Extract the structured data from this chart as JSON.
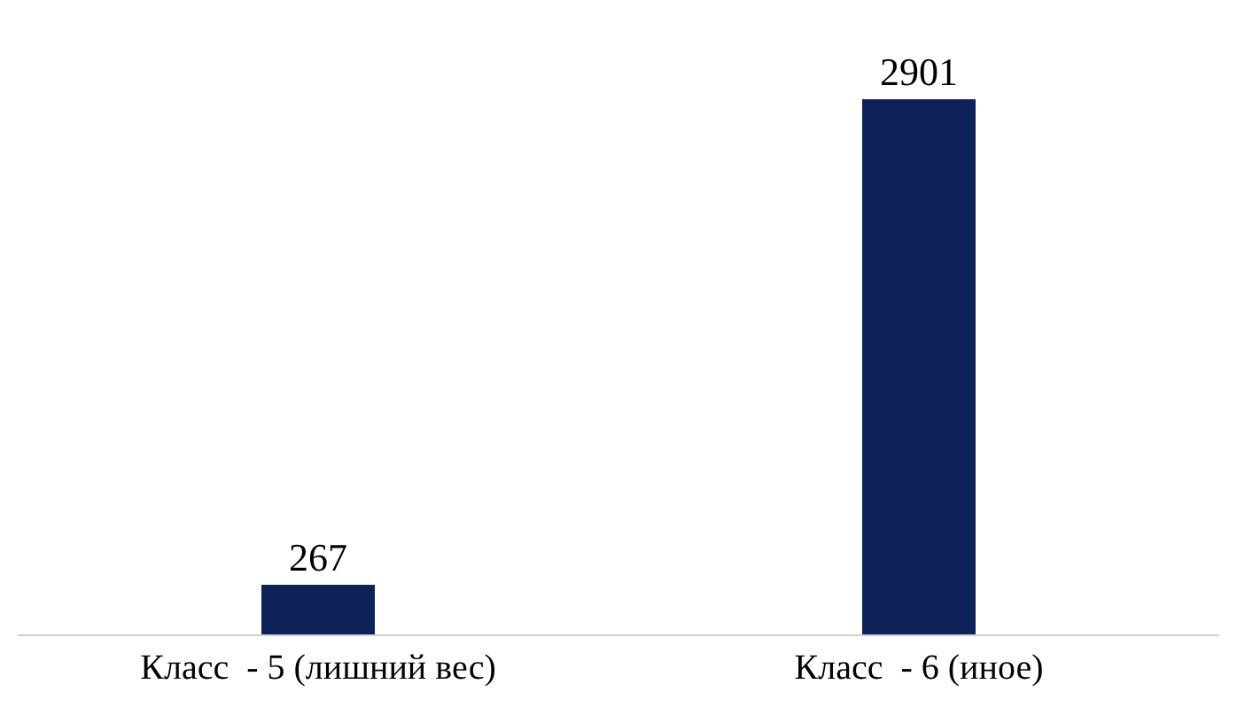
{
  "chart_data": {
    "type": "bar",
    "categories": [
      "Класс  - 5 (лишний вес)",
      "Класс  - 6 (иное)"
    ],
    "values": [
      267,
      2901
    ],
    "color": "#0e2159",
    "data_labels": true,
    "tick_labels": "x",
    "grid": false,
    "legend": false
  }
}
